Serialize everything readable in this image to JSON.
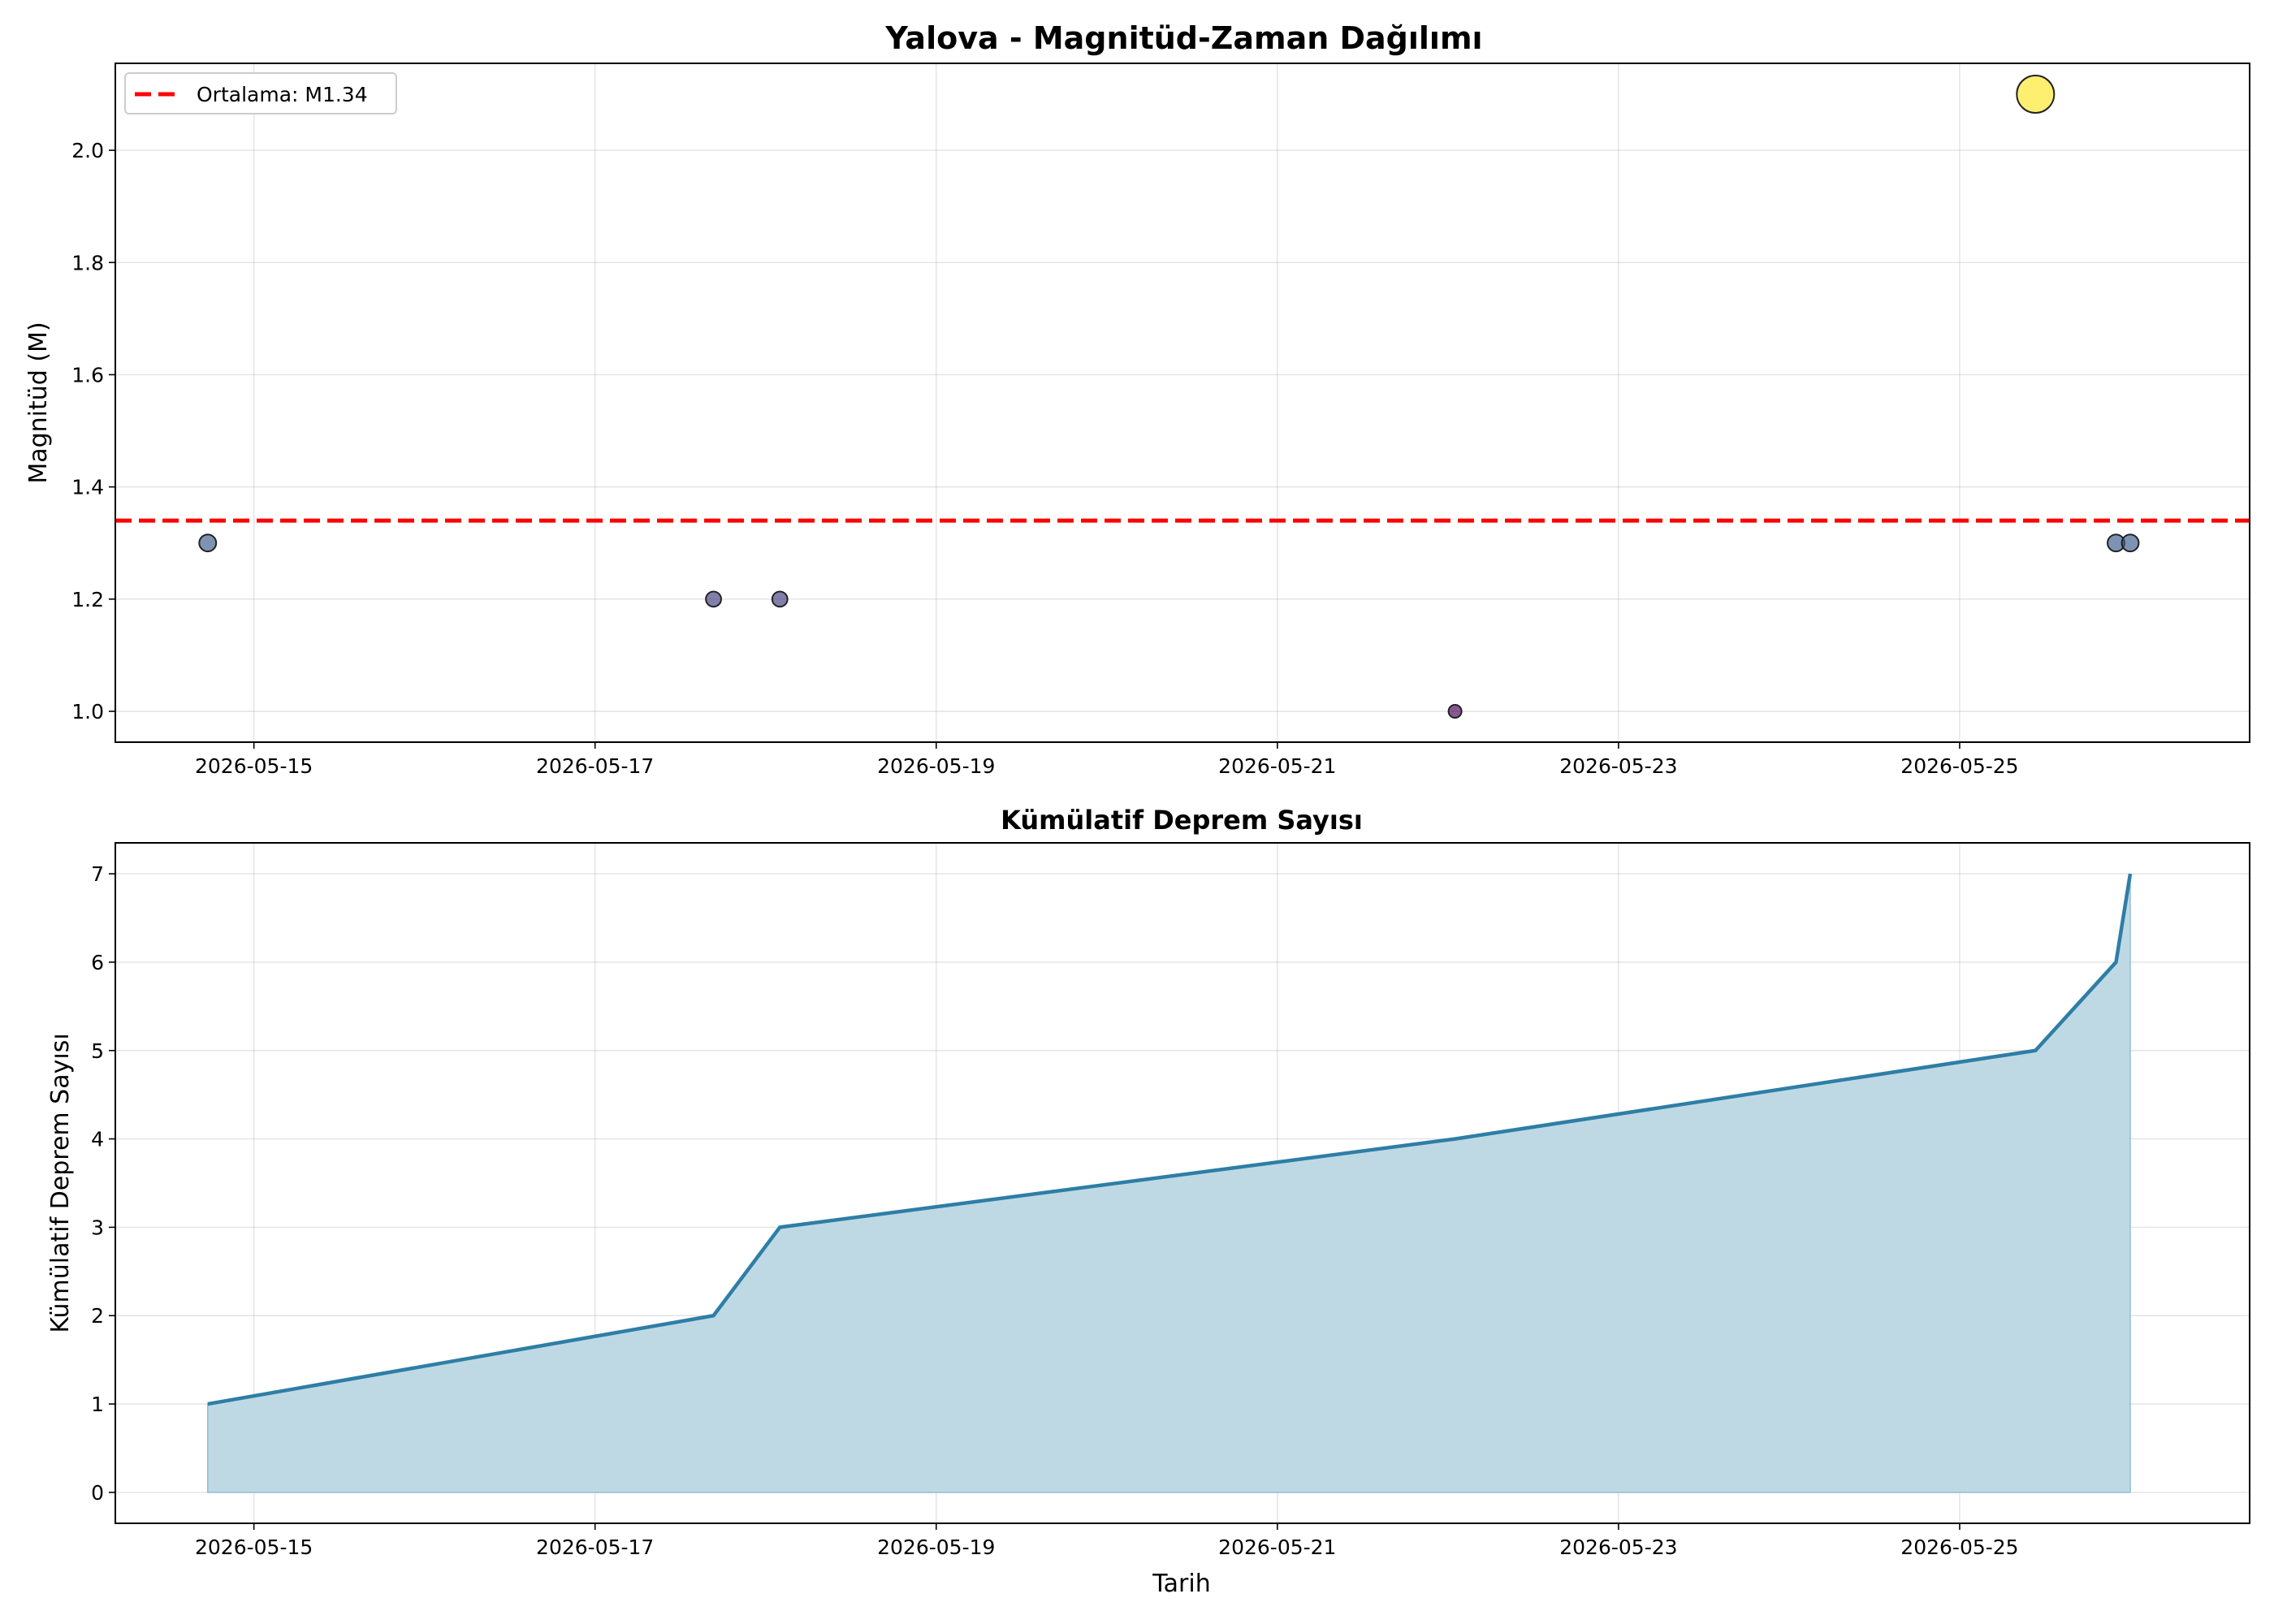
{
  "chart_data": [
    {
      "type": "scatter",
      "title": "Yalova - Magnitüd-Zaman Dağılımı",
      "xlabel": "",
      "ylabel": "Magnitüd (M)",
      "xlim": [
        "2026-05-14T04:30",
        "2026-05-26T16:48"
      ],
      "ylim": [
        0.945,
        2.155
      ],
      "x_ticks": [
        "2026-05-15",
        "2026-05-17",
        "2026-05-19",
        "2026-05-21",
        "2026-05-23",
        "2026-05-25"
      ],
      "y_ticks": [
        "1.0",
        "1.2",
        "1.4",
        "1.6",
        "1.8",
        "2.0"
      ],
      "grid": true,
      "legend_position": "upper-left",
      "points": [
        {
          "x": "2026-05-14T17:30",
          "y": 1.3
        },
        {
          "x": "2026-05-17T16:40",
          "y": 1.2
        },
        {
          "x": "2026-05-18T02:00",
          "y": 1.2
        },
        {
          "x": "2026-05-22T01:00",
          "y": 1.0
        },
        {
          "x": "2026-05-25T10:40",
          "y": 2.1
        },
        {
          "x": "2026-05-25T22:00",
          "y": 1.3
        },
        {
          "x": "2026-05-26T00:00",
          "y": 1.3
        }
      ],
      "reference_line": {
        "label": "Ortalama: M1.34",
        "y": 1.34,
        "color": "#ff0000",
        "style": "dashed"
      },
      "colormap": [
        "#440154",
        "#3b528b",
        "#21918c",
        "#5ec962",
        "#fde725"
      ]
    },
    {
      "type": "area",
      "title": "Kümülatif Deprem Sayısı",
      "xlabel": "Tarih",
      "ylabel": "Kümülatif Deprem Sayısı",
      "xlim": [
        "2026-05-14T04:30",
        "2026-05-26T16:48"
      ],
      "ylim": [
        -0.35,
        7.35
      ],
      "x_ticks": [
        "2026-05-15",
        "2026-05-17",
        "2026-05-19",
        "2026-05-21",
        "2026-05-23",
        "2026-05-25"
      ],
      "y_ticks": [
        "0",
        "1",
        "2",
        "3",
        "4",
        "5",
        "6",
        "7"
      ],
      "grid": true,
      "line_color": "#2e7ea6",
      "fill_color": "#bfd9e4",
      "points": [
        {
          "x": "2026-05-14T17:30",
          "y": 1
        },
        {
          "x": "2026-05-17T16:40",
          "y": 2
        },
        {
          "x": "2026-05-18T02:00",
          "y": 3
        },
        {
          "x": "2026-05-22T01:00",
          "y": 4
        },
        {
          "x": "2026-05-25T10:40",
          "y": 5
        },
        {
          "x": "2026-05-25T22:00",
          "y": 6
        },
        {
          "x": "2026-05-26T00:00",
          "y": 7
        }
      ]
    }
  ]
}
